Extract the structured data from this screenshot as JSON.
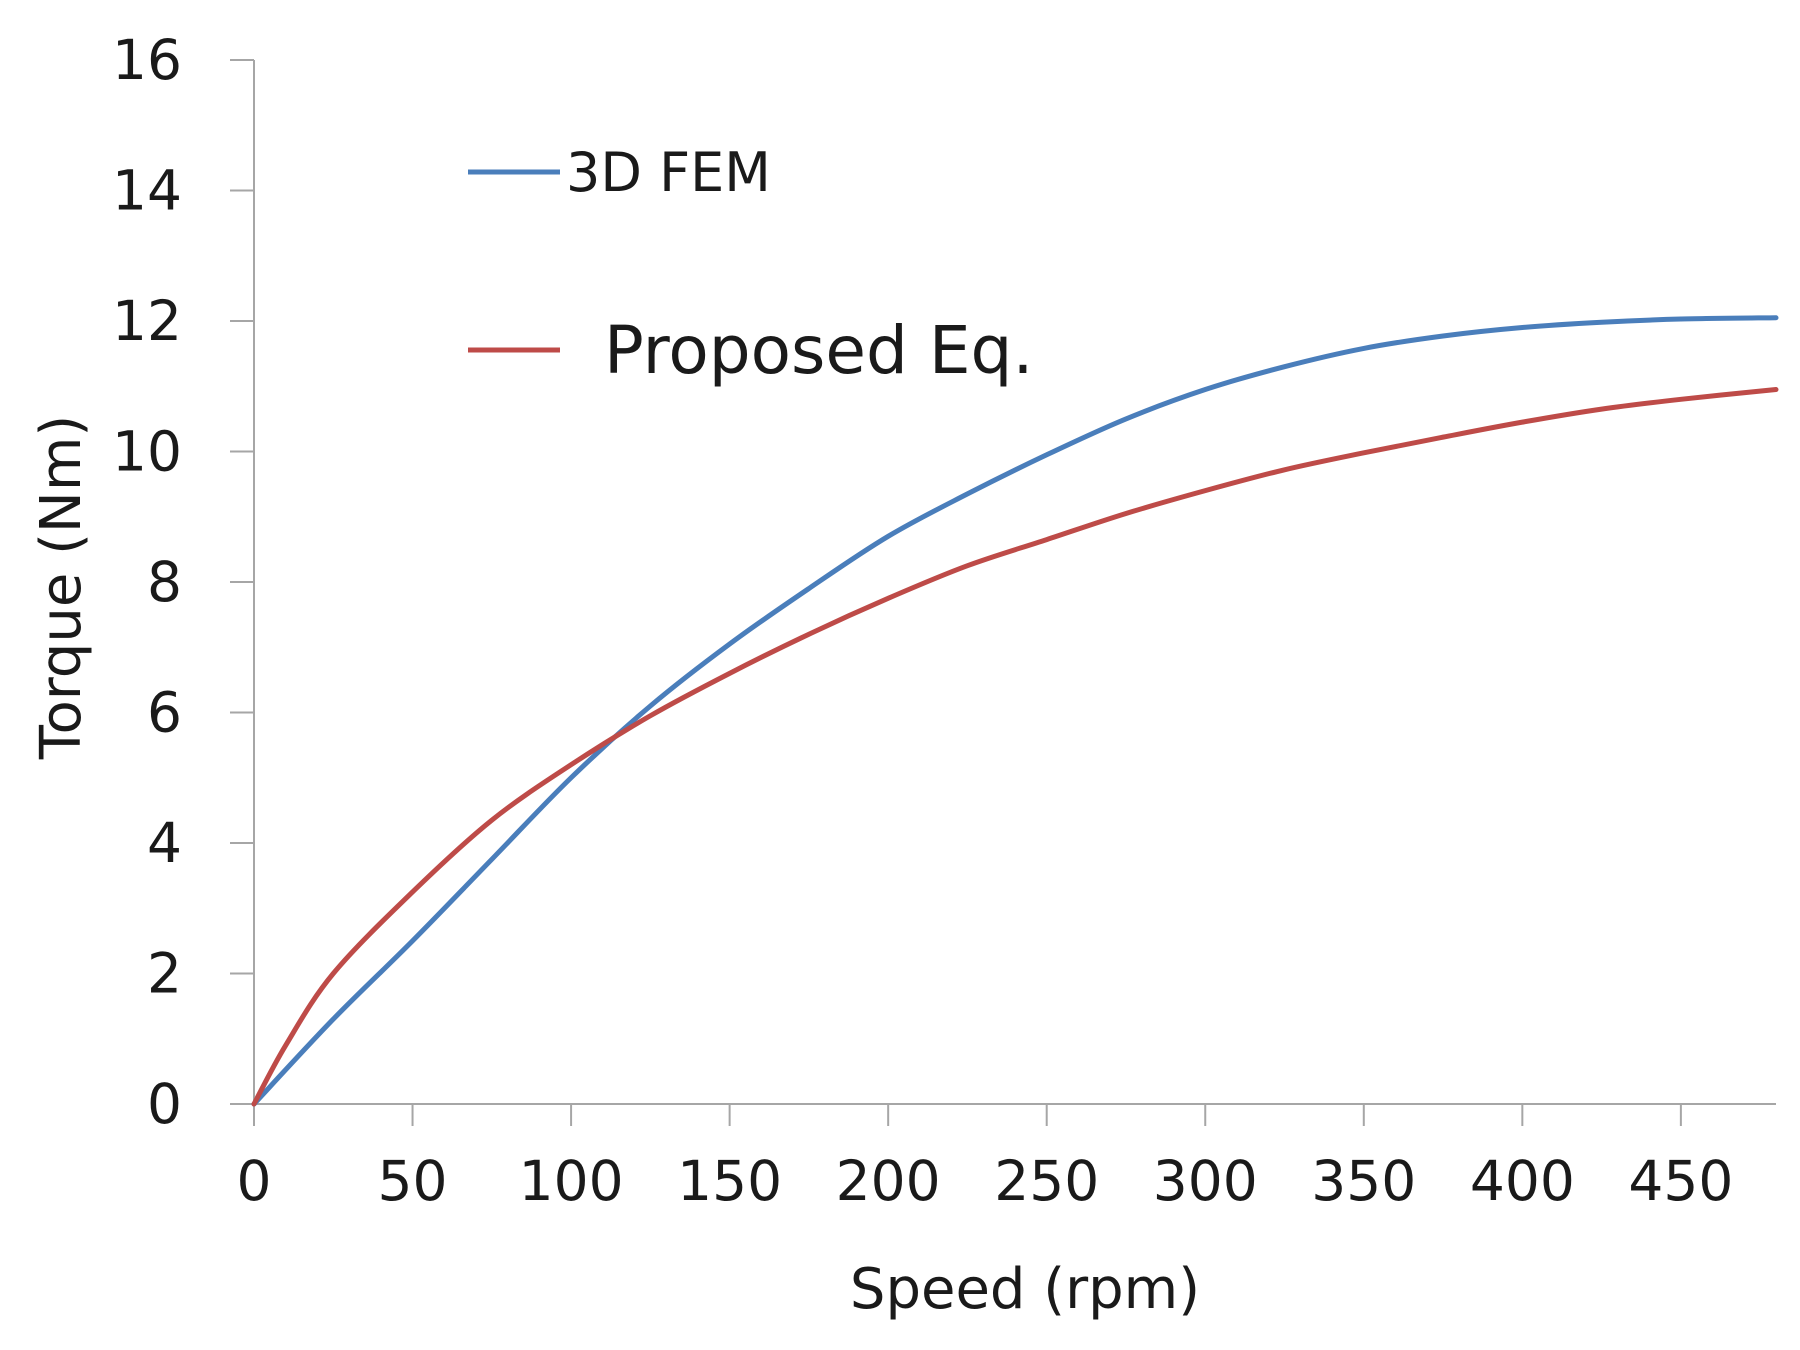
{
  "chart_data": {
    "type": "line",
    "title": "",
    "xlabel": "Speed (rpm)",
    "ylabel": "Torque (Nm)",
    "xlim": [
      0,
      480
    ],
    "ylim": [
      0,
      16
    ],
    "xticks": [
      0,
      50,
      100,
      150,
      200,
      250,
      300,
      350,
      400,
      450
    ],
    "yticks": [
      0,
      2,
      4,
      6,
      8,
      10,
      12,
      14,
      16
    ],
    "grid": false,
    "legend_position": "upper-left",
    "series": [
      {
        "name": "3D FEM",
        "color": "#4a7ebb",
        "x": [
          0,
          25,
          50,
          75,
          100,
          125,
          150,
          175,
          200,
          225,
          250,
          275,
          300,
          325,
          350,
          375,
          400,
          425,
          450,
          480
        ],
        "y": [
          0,
          1.3,
          2.5,
          3.75,
          5.0,
          6.1,
          7.05,
          7.9,
          8.7,
          9.35,
          9.95,
          10.5,
          10.95,
          11.3,
          11.58,
          11.77,
          11.9,
          11.98,
          12.03,
          12.05
        ]
      },
      {
        "name": "Proposed Eq.",
        "color": "#be4b48",
        "x": [
          0,
          10,
          25,
          50,
          75,
          100,
          125,
          150,
          175,
          200,
          225,
          250,
          275,
          300,
          325,
          350,
          375,
          400,
          425,
          450,
          480
        ],
        "y": [
          0,
          0.9,
          2.0,
          3.25,
          4.35,
          5.2,
          5.95,
          6.6,
          7.2,
          7.75,
          8.25,
          8.65,
          9.05,
          9.4,
          9.72,
          9.98,
          10.22,
          10.45,
          10.65,
          10.8,
          10.95
        ]
      }
    ]
  }
}
